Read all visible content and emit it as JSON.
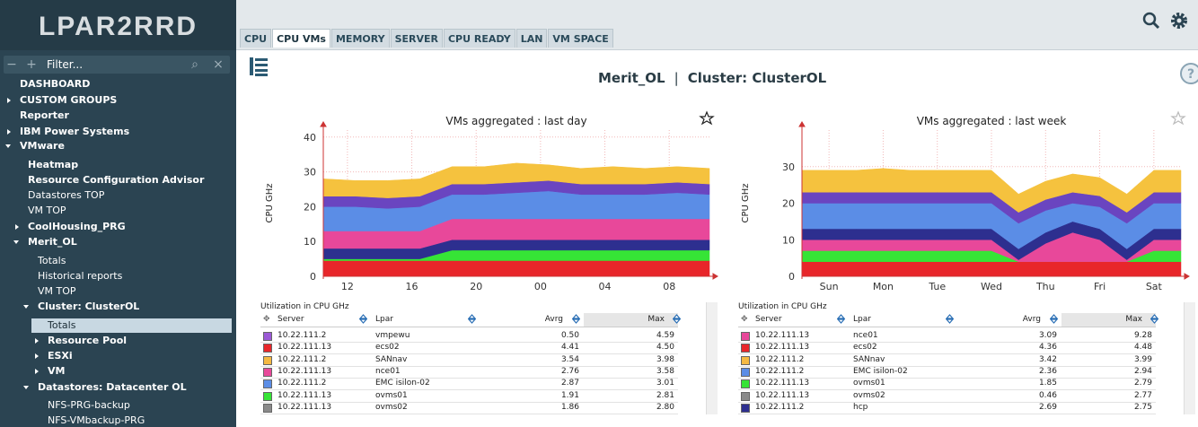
{
  "logo": "LPAR2RRD",
  "filter_placeholder": "Filter...",
  "sidebar": [
    "DASHBOARD",
    "CUSTOM GROUPS",
    "Reporter",
    "IBM Power Systems",
    "VMware",
    "Heatmap",
    "Resource Configuration Advisor",
    "Datastores TOP",
    "VM TOP",
    "CoolHousing_PRG",
    "Merit_OL",
    "Totals",
    "Historical reports",
    "VM TOP",
    "Cluster: ClusterOL",
    "Totals",
    "Resource Pool",
    "ESXi",
    "VM",
    "Datastores: Datacenter OL",
    "NFS-PRG-backup",
    "NFS-VMbackup-PRG"
  ],
  "tabs": [
    "CPU",
    "CPU VMs",
    "MEMORY",
    "SERVER",
    "CPU READY",
    "LAN",
    "VM SPACE"
  ],
  "header": {
    "entity": "Merit_OL",
    "separator": "|",
    "cluster": "Cluster: ClusterOL"
  },
  "chart_data": [
    {
      "type": "area",
      "stacked": true,
      "title": "VMs aggregated : last day",
      "y_label": "CPU GHz",
      "x": [
        0,
        2,
        4,
        6,
        8,
        10,
        12,
        14,
        16,
        18,
        20,
        22,
        24
      ],
      "xlim": [
        0,
        24
      ],
      "xticks": [
        {
          "value": 1.5,
          "label": "12"
        },
        {
          "value": 5.5,
          "label": "16"
        },
        {
          "value": 9.5,
          "label": "20"
        },
        {
          "value": 13.5,
          "label": "00"
        },
        {
          "value": 17.5,
          "label": "04"
        },
        {
          "value": 21.5,
          "label": "08"
        }
      ],
      "ylim": [
        0,
        42
      ],
      "yticks": [
        0,
        10,
        20,
        30,
        40
      ],
      "grid": true,
      "series": [
        {
          "color": "#e8262a",
          "values": [
            4.5,
            4.5,
            4.5,
            4.5,
            4.5,
            4.5,
            4.5,
            4.5,
            4.5,
            4.5,
            4.5,
            4.5,
            4.5
          ]
        },
        {
          "color": "#36e436",
          "values": [
            0.5,
            0.5,
            0.5,
            0.5,
            3,
            3,
            3,
            3,
            3,
            3,
            3,
            3,
            3
          ]
        },
        {
          "color": "#2d2f8f",
          "values": [
            3,
            3,
            3,
            3,
            3,
            3,
            3,
            3,
            3,
            3,
            3,
            3,
            3
          ]
        },
        {
          "color": "#e8489a",
          "values": [
            5,
            5,
            5,
            5,
            6,
            6,
            6,
            6,
            6,
            6,
            6,
            6,
            6
          ]
        },
        {
          "color": "#5b8de6",
          "values": [
            7,
            7,
            6.5,
            7,
            7,
            7,
            7.5,
            8,
            7,
            7,
            7,
            7.5,
            7
          ]
        },
        {
          "color": "#6a45c0",
          "values": [
            3,
            3,
            3,
            3,
            3,
            3,
            3,
            3,
            3,
            3,
            3,
            3,
            3
          ]
        },
        {
          "color": "#f5c23e",
          "values": [
            5,
            4.5,
            5,
            5,
            5,
            5,
            5.5,
            4.5,
            4.5,
            5,
            4.5,
            4.5,
            4.5
          ]
        }
      ]
    },
    {
      "type": "area",
      "stacked": true,
      "title": "VMs aggregated : last week",
      "y_label": "CPU GHz",
      "x": [
        0,
        0.5,
        1,
        1.5,
        2,
        2.5,
        3,
        3.5,
        4,
        4.5,
        5,
        5.5,
        6,
        6.5,
        7
      ],
      "xlim": [
        0,
        7
      ],
      "xticks": [
        {
          "value": 0.5,
          "label": "Sun"
        },
        {
          "value": 1.5,
          "label": "Mon"
        },
        {
          "value": 2.5,
          "label": "Tue"
        },
        {
          "value": 3.5,
          "label": "Wed"
        },
        {
          "value": 4.5,
          "label": "Thu"
        },
        {
          "value": 5.5,
          "label": "Fri"
        },
        {
          "value": 6.5,
          "label": "Sat"
        }
      ],
      "ylim": [
        0,
        40
      ],
      "yticks": [
        0,
        10,
        20,
        30
      ],
      "grid": true,
      "series": [
        {
          "color": "#e8262a",
          "values": [
            4,
            4,
            4,
            4,
            4,
            4,
            4,
            4,
            4,
            4,
            4,
            4,
            4,
            4,
            4
          ]
        },
        {
          "color": "#36e436",
          "values": [
            3,
            3,
            3,
            3,
            3,
            3,
            3,
            3,
            0,
            0,
            0,
            0,
            0,
            3,
            3
          ]
        },
        {
          "color": "#e8489a",
          "values": [
            3,
            3,
            3,
            3,
            3,
            3,
            3,
            3,
            0.5,
            5,
            8,
            6,
            0.5,
            3,
            3
          ]
        },
        {
          "color": "#2d2f8f",
          "values": [
            3,
            3,
            3,
            3,
            3,
            3,
            3,
            3,
            3,
            3,
            3,
            3,
            3,
            3,
            3
          ]
        },
        {
          "color": "#5b8de6",
          "values": [
            7,
            7,
            7,
            7,
            7,
            7,
            7,
            7,
            7,
            6,
            5,
            6,
            7,
            7,
            7
          ]
        },
        {
          "color": "#6a45c0",
          "values": [
            3,
            3,
            3,
            3,
            3,
            3,
            3,
            3,
            3,
            3,
            3,
            3,
            3,
            3,
            3
          ]
        },
        {
          "color": "#f5c23e",
          "values": [
            6,
            6,
            6,
            6.5,
            6,
            6,
            6,
            6,
            5,
            5,
            5,
            5,
            5,
            6,
            6
          ]
        }
      ]
    }
  ],
  "tables": [
    {
      "caption": "Utilization in CPU GHz",
      "columns": [
        "Server",
        "Lpar",
        "Avrg",
        "Max"
      ],
      "rows": [
        {
          "color": "#9b59d6",
          "server": "10.22.111.2",
          "lpar": "vmpewu",
          "avg": "0.50",
          "max": "4.59"
        },
        {
          "color": "#e8262a",
          "server": "10.22.111.13",
          "lpar": "ecs02",
          "avg": "4.41",
          "max": "4.50"
        },
        {
          "color": "#f5b942",
          "server": "10.22.111.2",
          "lpar": "SANnav",
          "avg": "3.54",
          "max": "3.98"
        },
        {
          "color": "#e8489a",
          "server": "10.22.111.13",
          "lpar": "nce01",
          "avg": "2.76",
          "max": "3.58"
        },
        {
          "color": "#5b8de6",
          "server": "10.22.111.2",
          "lpar": "EMC isilon-02",
          "avg": "2.87",
          "max": "3.01"
        },
        {
          "color": "#36e436",
          "server": "10.22.111.13",
          "lpar": "ovms01",
          "avg": "1.91",
          "max": "2.81"
        },
        {
          "color": "#8a8a8a",
          "server": "10.22.111.13",
          "lpar": "ovms02",
          "avg": "1.86",
          "max": "2.80"
        }
      ]
    },
    {
      "caption": "Utilization in CPU GHz",
      "columns": [
        "Server",
        "Lpar",
        "Avrg",
        "Max"
      ],
      "rows": [
        {
          "color": "#e8489a",
          "server": "10.22.111.13",
          "lpar": "nce01",
          "avg": "3.09",
          "max": "9.28"
        },
        {
          "color": "#e8262a",
          "server": "10.22.111.13",
          "lpar": "ecs02",
          "avg": "4.36",
          "max": "4.48"
        },
        {
          "color": "#f5b942",
          "server": "10.22.111.2",
          "lpar": "SANnav",
          "avg": "3.42",
          "max": "3.99"
        },
        {
          "color": "#5b8de6",
          "server": "10.22.111.2",
          "lpar": "EMC isilon-02",
          "avg": "2.36",
          "max": "2.94"
        },
        {
          "color": "#36e436",
          "server": "10.22.111.13",
          "lpar": "ovms01",
          "avg": "1.85",
          "max": "2.79"
        },
        {
          "color": "#8a8a8a",
          "server": "10.22.111.13",
          "lpar": "ovms02",
          "avg": "0.46",
          "max": "2.77"
        },
        {
          "color": "#2d2f8f",
          "server": "10.22.111.2",
          "lpar": "hcp",
          "avg": "2.69",
          "max": "2.75"
        }
      ]
    }
  ]
}
